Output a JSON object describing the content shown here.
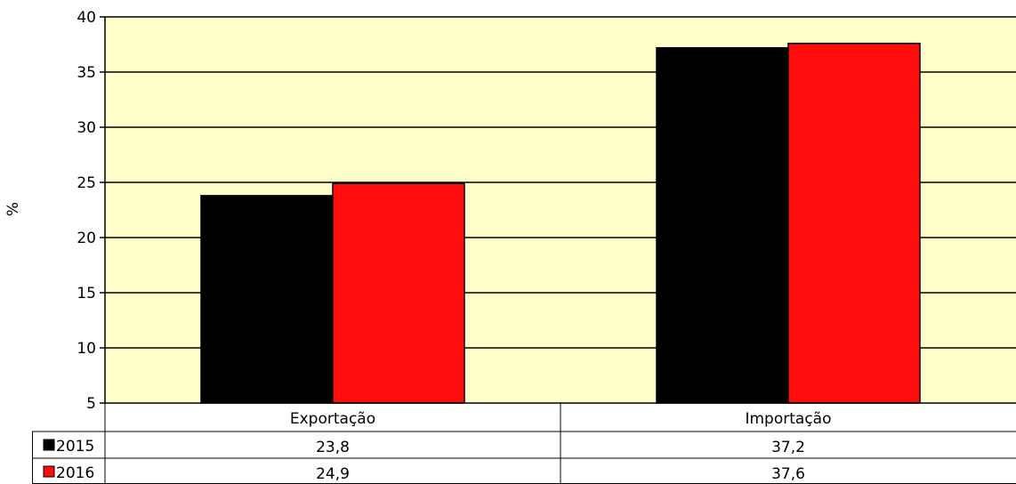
{
  "chart_data": {
    "type": "bar",
    "categories": [
      "Exportação",
      "Importação"
    ],
    "series": [
      {
        "name": "2015",
        "color": "#000000",
        "values": [
          23.8,
          37.2
        ],
        "labels": [
          "23,8",
          "37,2"
        ]
      },
      {
        "name": "2016",
        "color": "#ff0d0d",
        "values": [
          24.9,
          37.6
        ],
        "labels": [
          "24,9",
          "37,6"
        ]
      }
    ],
    "ylabel": "%",
    "ylim": [
      5,
      40
    ],
    "yticks": [
      "5",
      "10",
      "15",
      "20",
      "25",
      "30",
      "35",
      "40"
    ],
    "grid": true,
    "plot_background": "#ffffcc",
    "legend": "data-table-below"
  }
}
